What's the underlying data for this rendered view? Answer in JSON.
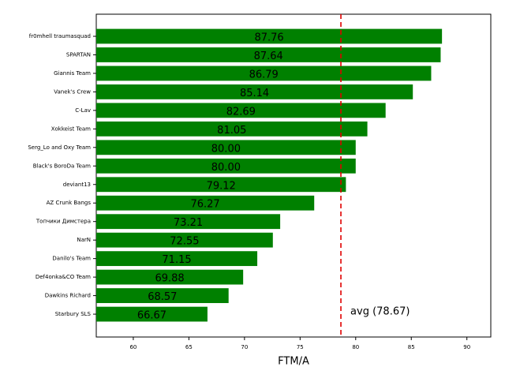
{
  "chart_data": {
    "type": "barh",
    "x_label": "FTM/A",
    "categories": [
      "fr0mhell traumasquad",
      "SPARTAN",
      "Giannis Team",
      "Vanek's Crew",
      "C-Lav",
      "Xokkeist Team",
      "Serg_Lo and Oxy Team",
      "Black's BoroDa Team",
      "deviant13",
      "AZ Crunk Bangs",
      "Топчики Димстера",
      "NarN",
      "Danilo's Team",
      "Def4onka&CO Team",
      "Dawkins Richard",
      "Starbury SLS"
    ],
    "values": [
      87.76,
      87.64,
      86.79,
      85.14,
      82.69,
      81.05,
      80.0,
      80.0,
      79.12,
      76.27,
      73.21,
      72.55,
      71.15,
      69.88,
      68.57,
      66.67
    ],
    "value_labels": [
      "87.76",
      "87.64",
      "86.79",
      "85.14",
      "82.69",
      "81.05",
      "80.00",
      "80.00",
      "79.12",
      "76.27",
      "73.21",
      "72.55",
      "71.15",
      "69.88",
      "68.57",
      "66.67"
    ],
    "color": "#008000",
    "xlim": [
      56.67,
      92.15
    ],
    "xticks": [
      60,
      65,
      70,
      75,
      80,
      85,
      90
    ],
    "average": {
      "value": 78.67,
      "label": "avg (78.67)",
      "color": "#e00000"
    }
  }
}
